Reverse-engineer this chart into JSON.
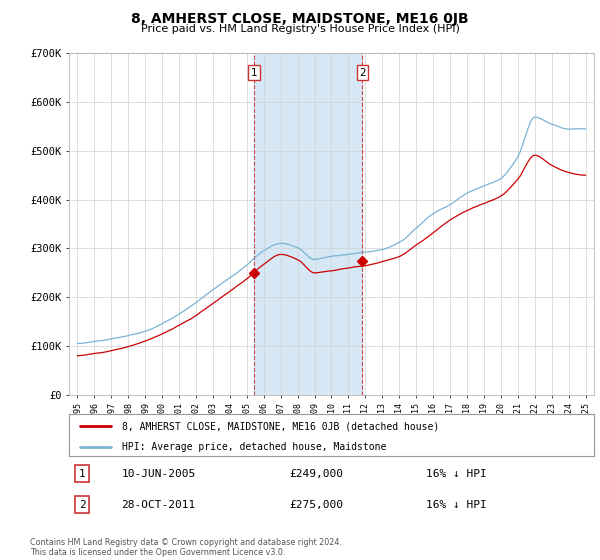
{
  "title": "8, AMHERST CLOSE, MAIDSTONE, ME16 0JB",
  "subtitle": "Price paid vs. HM Land Registry's House Price Index (HPI)",
  "ylabel_ticks": [
    "£0",
    "£100K",
    "£200K",
    "£300K",
    "£400K",
    "£500K",
    "£600K",
    "£700K"
  ],
  "ylim": [
    0,
    700000
  ],
  "xlim_start": 1994.5,
  "xlim_end": 2025.5,
  "hpi_color": "#7ab3d4",
  "price_color": "#cc0000",
  "span_color": "#d6e8f5",
  "marker1_date": 2005.44,
  "marker1_price": 249000,
  "marker2_date": 2011.83,
  "marker2_price": 275000,
  "legend_line1": "8, AMHERST CLOSE, MAIDSTONE, ME16 0JB (detached house)",
  "legend_line2": "HPI: Average price, detached house, Maidstone",
  "annotation1_label": "1",
  "annotation1_date": "10-JUN-2005",
  "annotation1_price": "£249,000",
  "annotation1_hpi": "16% ↓ HPI",
  "annotation2_label": "2",
  "annotation2_date": "28-OCT-2011",
  "annotation2_price": "£275,000",
  "annotation2_hpi": "16% ↓ HPI",
  "footer": "Contains HM Land Registry data © Crown copyright and database right 2024.\nThis data is licensed under the Open Government Licence v3.0.",
  "background_color": "#ffffff",
  "grid_color": "#d0d0d0"
}
